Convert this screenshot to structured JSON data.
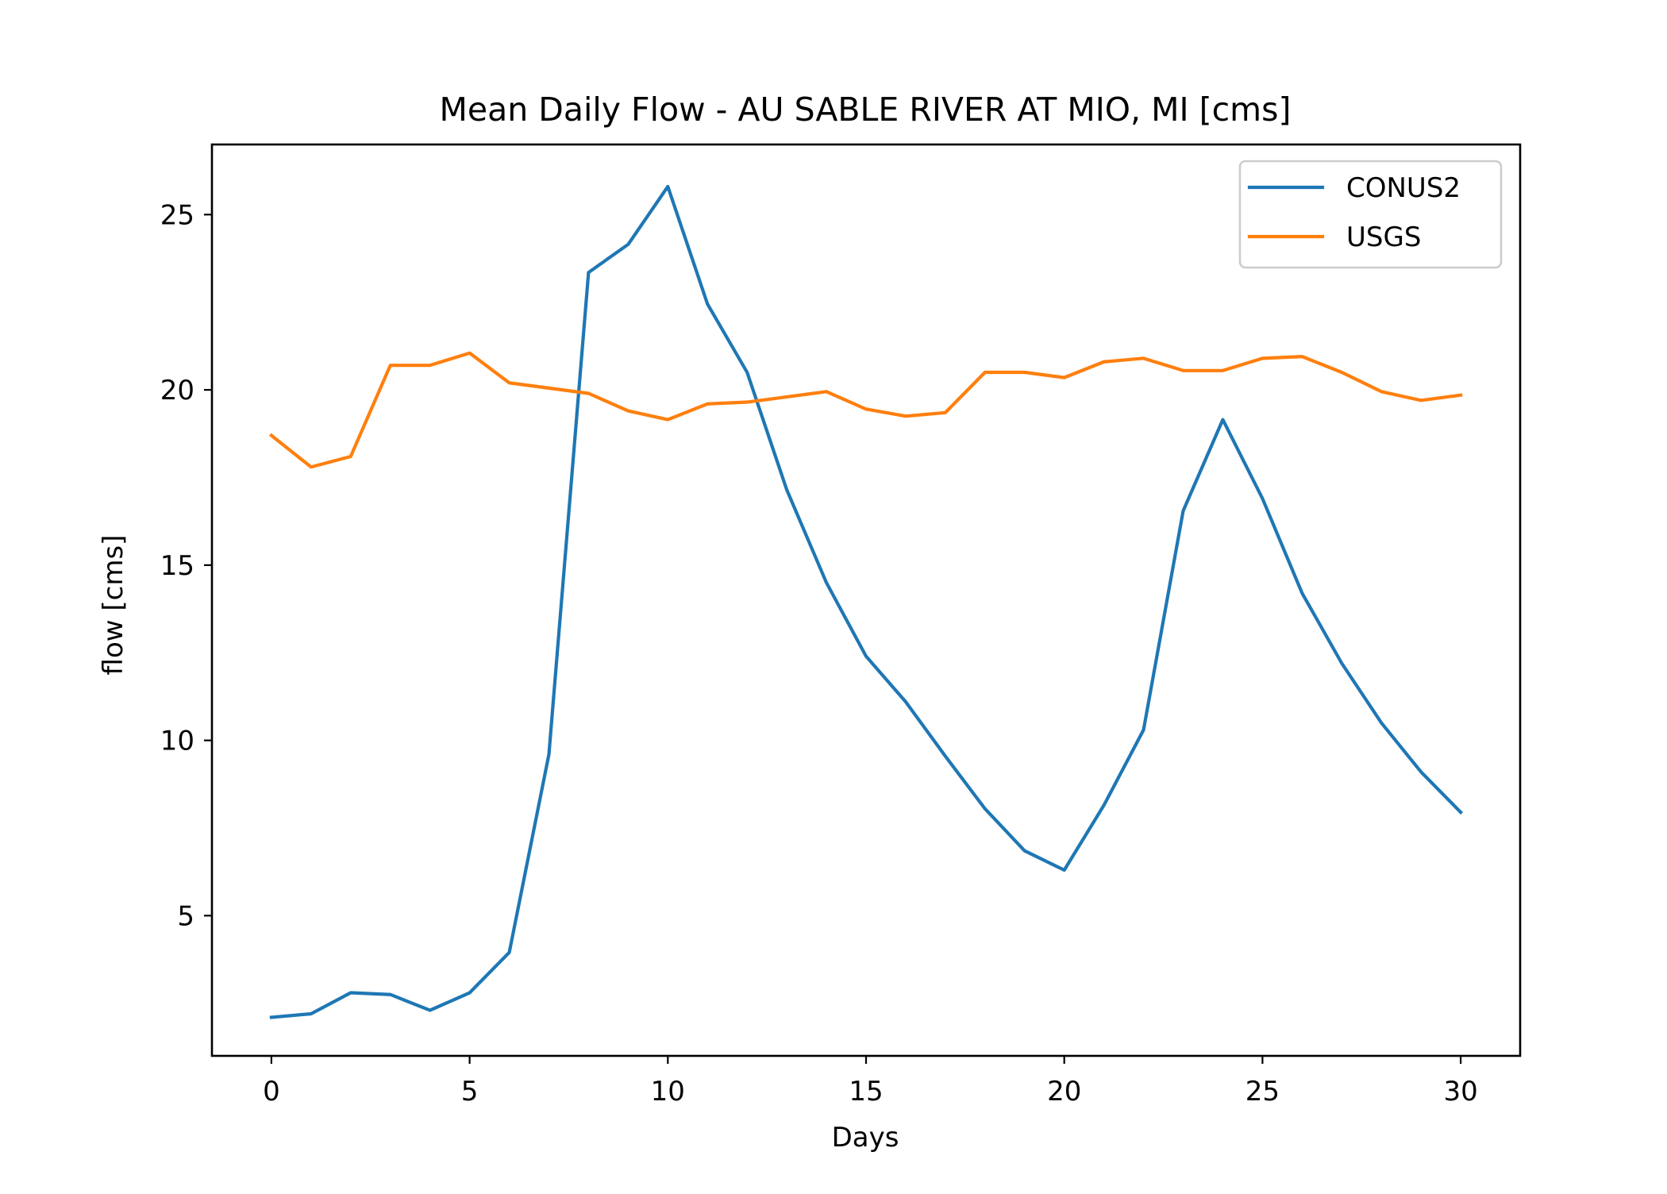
{
  "chart_data": {
    "type": "line",
    "title": "Mean Daily Flow - AU SABLE RIVER AT MIO, MI [cms]",
    "xlabel": "Days",
    "ylabel": "flow [cms]",
    "xlim": [
      -1.5,
      31.5
    ],
    "ylim": [
      1.0,
      27.0
    ],
    "xticks": [
      0,
      5,
      10,
      15,
      20,
      25,
      30
    ],
    "yticks": [
      5,
      10,
      15,
      20,
      25
    ],
    "xtick_labels": [
      "0",
      "5",
      "10",
      "15",
      "20",
      "25",
      "30"
    ],
    "ytick_labels": [
      "5",
      "10",
      "15",
      "20",
      "25"
    ],
    "grid": false,
    "legend_position": "upper right",
    "x": [
      0,
      1,
      2,
      3,
      4,
      5,
      6,
      7,
      8,
      9,
      10,
      11,
      12,
      13,
      14,
      15,
      16,
      17,
      18,
      19,
      20,
      21,
      22,
      23,
      24,
      25,
      26,
      27,
      28,
      29,
      30
    ],
    "series": [
      {
        "name": "CONUS2",
        "color": "#1f77b4",
        "values": [
          2.1,
          2.2,
          2.8,
          2.75,
          2.3,
          2.8,
          3.95,
          9.6,
          23.35,
          24.15,
          25.8,
          22.45,
          20.5,
          17.15,
          14.5,
          12.4,
          11.1,
          9.55,
          8.05,
          6.85,
          6.3,
          8.15,
          10.3,
          16.55,
          19.15,
          16.9,
          14.2,
          12.2,
          10.5,
          9.1,
          7.95
        ]
      },
      {
        "name": "USGS",
        "color": "#ff7f0e",
        "values": [
          18.7,
          17.8,
          18.1,
          20.7,
          20.7,
          21.05,
          20.2,
          20.05,
          19.9,
          19.4,
          19.15,
          19.6,
          19.65,
          19.8,
          19.95,
          19.45,
          19.25,
          19.35,
          20.5,
          20.5,
          20.35,
          20.8,
          20.9,
          20.55,
          20.55,
          20.9,
          20.95,
          20.5,
          19.95,
          19.7,
          19.85
        ]
      }
    ]
  }
}
